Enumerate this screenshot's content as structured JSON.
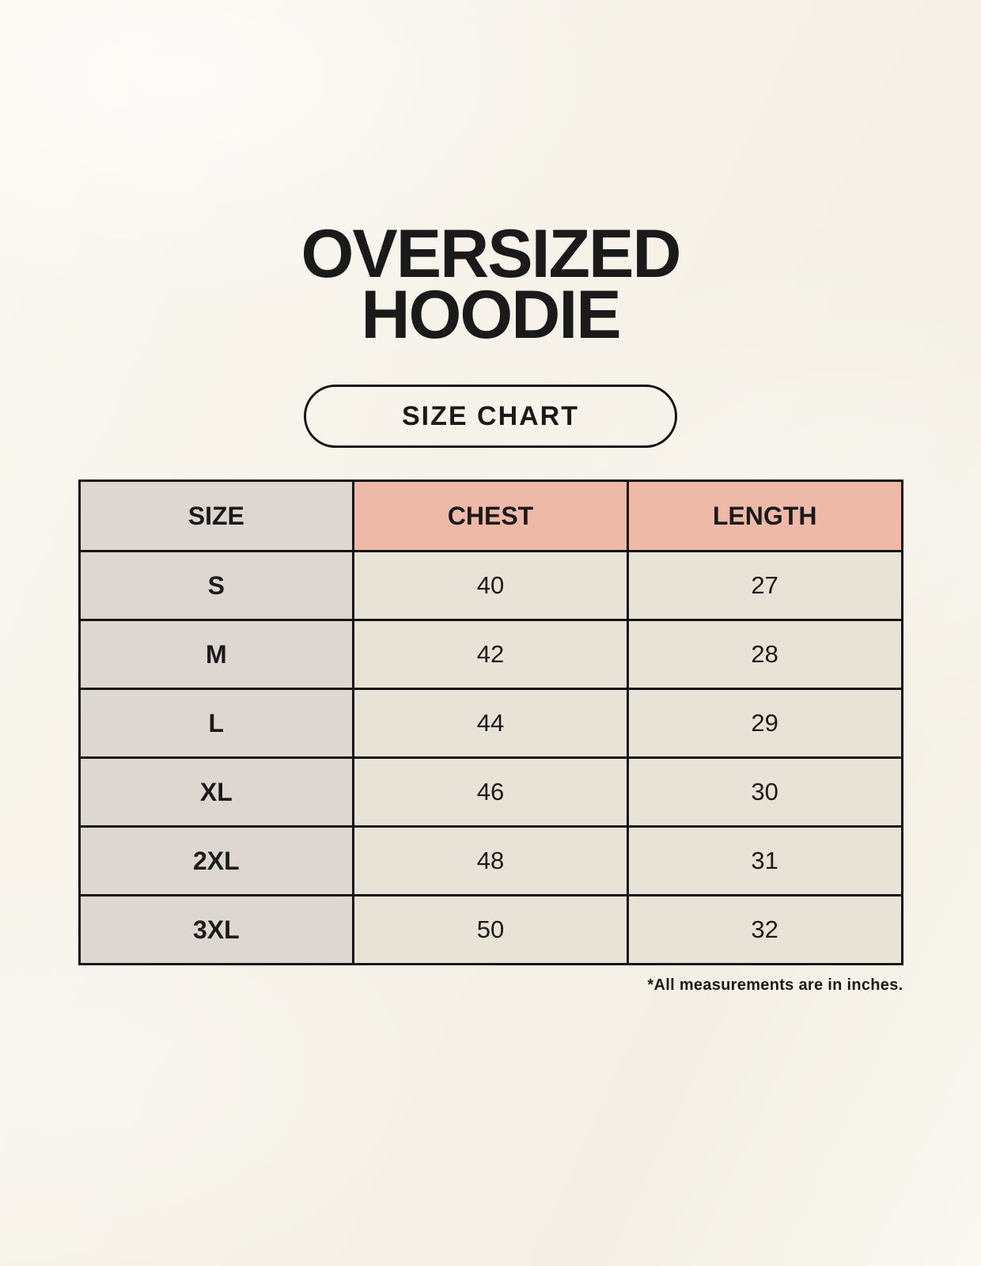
{
  "header": {
    "title_line1": "OVERSIZED",
    "title_line2": "HOODIE",
    "size_chart_badge": "SIZE CHART"
  },
  "table": {
    "columns": [
      "SIZE",
      "CHEST",
      "LENGTH"
    ],
    "rows": [
      [
        "S",
        "40",
        "27"
      ],
      [
        "M",
        "42",
        "28"
      ],
      [
        "L",
        "44",
        "29"
      ],
      [
        "XL",
        "46",
        "30"
      ],
      [
        "2XL",
        "48",
        "31"
      ],
      [
        "3XL",
        "50",
        "32"
      ]
    ]
  },
  "footnote": "*All measurements are in inches.",
  "colors": {
    "background": "#f6f2e9",
    "header_label_bg": "#ded6d0",
    "header_measure_bg": "#efb9a8",
    "row_label_bg": "#ded7d1",
    "cell_bg": "#e9e2d6",
    "border": "#151515",
    "text": "#1a1a1a"
  },
  "chart_data": {
    "type": "table",
    "title": "OVERSIZED HOODIE — SIZE CHART",
    "columns": [
      "SIZE",
      "CHEST",
      "LENGTH"
    ],
    "rows": [
      {
        "size": "S",
        "chest": 40,
        "length": 27
      },
      {
        "size": "M",
        "chest": 42,
        "length": 28
      },
      {
        "size": "L",
        "chest": 44,
        "length": 29
      },
      {
        "size": "XL",
        "chest": 46,
        "length": 30
      },
      {
        "size": "2XL",
        "chest": 48,
        "length": 31
      },
      {
        "size": "3XL",
        "chest": 50,
        "length": 32
      }
    ],
    "units": "inches",
    "notes": "*All measurements are in inches."
  }
}
